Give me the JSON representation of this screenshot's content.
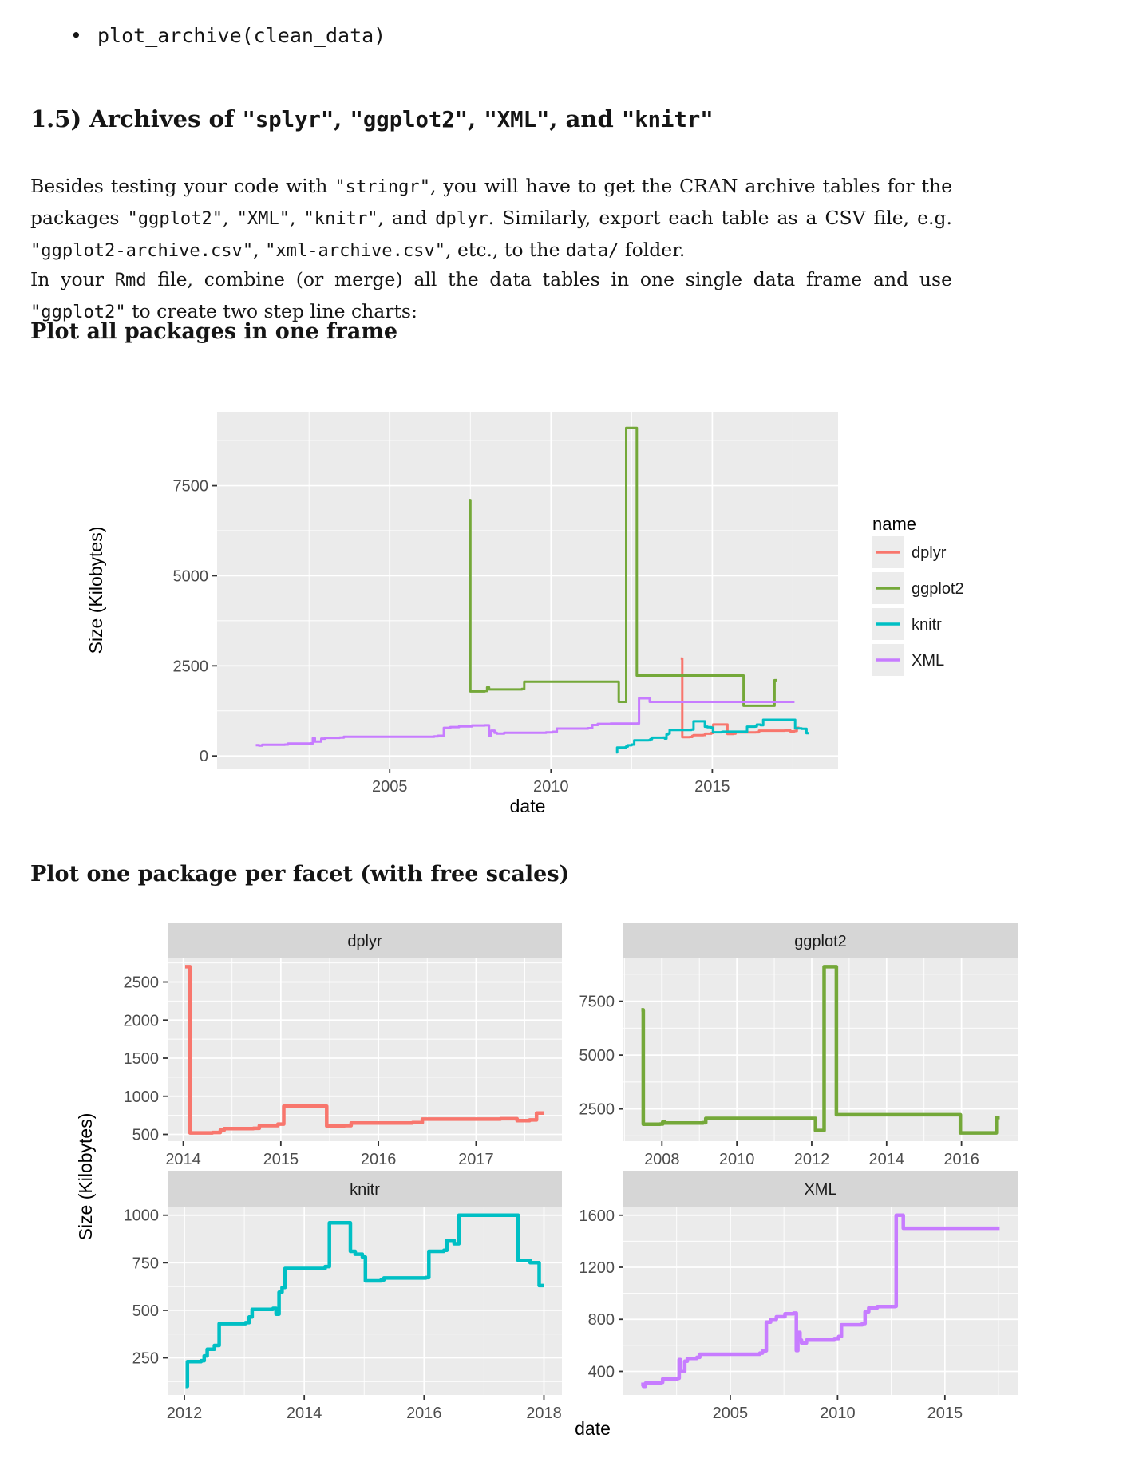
{
  "page": {
    "bullet_code": "plot_archive(clean_data)",
    "heading": {
      "segments": [
        {
          "t": "1.5) Archives of "
        },
        {
          "t": "\"splyr\"",
          "c": 1
        },
        {
          "t": ", "
        },
        {
          "t": "\"ggplot2\"",
          "c": 1
        },
        {
          "t": ", "
        },
        {
          "t": "\"XML\"",
          "c": 1
        },
        {
          "t": ", and "
        },
        {
          "t": "\"knitr\"",
          "c": 1
        }
      ]
    },
    "para1": {
      "segments": [
        {
          "t": "Besides testing your code with "
        },
        {
          "t": "\"stringr\"",
          "c": 1
        },
        {
          "t": ", you will have to get the CRAN archive tables for the packages "
        },
        {
          "t": "\"ggplot2\"",
          "c": 1
        },
        {
          "t": ", "
        },
        {
          "t": "\"XML\"",
          "c": 1
        },
        {
          "t": ", "
        },
        {
          "t": "\"knitr\"",
          "c": 1
        },
        {
          "t": ", and "
        },
        {
          "t": "dplyr",
          "c": 1
        },
        {
          "t": ". Similarly, export each table as a CSV file, e.g. "
        },
        {
          "t": "\"ggplot2-archive.csv\"",
          "c": 1
        },
        {
          "t": ", "
        },
        {
          "t": "\"xml-archive.csv\"",
          "c": 1
        },
        {
          "t": ", etc., to the "
        },
        {
          "t": "data/",
          "c": 1
        },
        {
          "t": " folder."
        }
      ]
    },
    "para2": {
      "segments": [
        {
          "t": "In your "
        },
        {
          "t": "Rmd",
          "c": 1
        },
        {
          "t": " file, combine (or merge) all the data tables in one single data frame and use "
        },
        {
          "t": "\"ggplot2\"",
          "c": 1
        },
        {
          "t": " to create two step line charts:"
        }
      ]
    },
    "subheading1": "Plot all packages in one frame",
    "subheading2": "Plot one package per facet (with free scales)"
  },
  "theme": {
    "panel_bg": "#EBEBEB",
    "strip_bg": "#D6D6D6",
    "grid": "#FFFFFF",
    "tick_mark": "#333333",
    "tick_text": "#4D4D4D",
    "axis_title": "#000000",
    "strip_text": "#1A1A1A",
    "legend_key_bg": "#ECECEC"
  },
  "chart_data": [
    {
      "type": "line",
      "step": true,
      "xlabel": "date",
      "ylabel": "Size (Kilobytes)",
      "xlim": [
        1999.65,
        2018.9
      ],
      "ylim": [
        -350,
        9550
      ],
      "x_ticks": [
        2005,
        2010,
        2015
      ],
      "y_ticks": [
        0,
        2500,
        5000,
        7500
      ],
      "grid": true,
      "legend": {
        "title": "name",
        "position": "right",
        "entries": [
          "dplyr",
          "ggplot2",
          "knitr",
          "XML"
        ]
      },
      "series": [
        {
          "name": "dplyr",
          "color": "#F8766D",
          "points": [
            [
              2014.02,
              2700
            ],
            [
              2014.07,
              520
            ],
            [
              2014.3,
              525
            ],
            [
              2014.38,
              555
            ],
            [
              2014.42,
              575
            ],
            [
              2014.72,
              580
            ],
            [
              2014.78,
              615
            ],
            [
              2014.97,
              635
            ],
            [
              2015.03,
              870
            ],
            [
              2015.44,
              870
            ],
            [
              2015.47,
              610
            ],
            [
              2015.65,
              615
            ],
            [
              2015.72,
              650
            ],
            [
              2016.35,
              655
            ],
            [
              2016.45,
              700
            ],
            [
              2017.25,
              705
            ],
            [
              2017.42,
              680
            ],
            [
              2017.55,
              690
            ],
            [
              2017.62,
              780
            ],
            [
              2017.7,
              780
            ]
          ]
        },
        {
          "name": "ggplot2",
          "color": "#74A839",
          "points": [
            [
              2007.45,
              7100
            ],
            [
              2007.5,
              1790
            ],
            [
              2007.95,
              1800
            ],
            [
              2008.02,
              1900
            ],
            [
              2008.08,
              1845
            ],
            [
              2009.1,
              1860
            ],
            [
              2009.17,
              2060
            ],
            [
              2011.9,
              2060
            ],
            [
              2012.1,
              1500
            ],
            [
              2012.28,
              1500
            ],
            [
              2012.33,
              9100
            ],
            [
              2012.62,
              9100
            ],
            [
              2012.66,
              2230
            ],
            [
              2015.92,
              2230
            ],
            [
              2015.97,
              1390
            ],
            [
              2016.88,
              1390
            ],
            [
              2016.93,
              2100
            ],
            [
              2017.02,
              2100
            ]
          ]
        },
        {
          "name": "knitr",
          "color": "#00BFC4",
          "points": [
            [
              2012.02,
              100
            ],
            [
              2012.05,
              230
            ],
            [
              2012.28,
              235
            ],
            [
              2012.33,
              260
            ],
            [
              2012.38,
              295
            ],
            [
              2012.5,
              315
            ],
            [
              2012.58,
              430
            ],
            [
              2013.02,
              435
            ],
            [
              2013.08,
              465
            ],
            [
              2013.13,
              505
            ],
            [
              2013.48,
              510
            ],
            [
              2013.53,
              480
            ],
            [
              2013.58,
              595
            ],
            [
              2013.63,
              620
            ],
            [
              2013.68,
              720
            ],
            [
              2014.35,
              730
            ],
            [
              2014.42,
              960
            ],
            [
              2014.72,
              960
            ],
            [
              2014.77,
              810
            ],
            [
              2014.85,
              795
            ],
            [
              2014.97,
              780
            ],
            [
              2015.02,
              655
            ],
            [
              2015.28,
              660
            ],
            [
              2015.33,
              670
            ],
            [
              2016.03,
              672
            ],
            [
              2016.08,
              810
            ],
            [
              2016.33,
              815
            ],
            [
              2016.38,
              868
            ],
            [
              2016.5,
              850
            ],
            [
              2016.58,
              1000
            ],
            [
              2017.52,
              1000
            ],
            [
              2017.57,
              762
            ],
            [
              2017.77,
              750
            ],
            [
              2017.92,
              630
            ],
            [
              2018.0,
              630
            ]
          ]
        },
        {
          "name": "XML",
          "color": "#C77CFF",
          "points": [
            [
              2000.85,
              300
            ],
            [
              2000.95,
              285
            ],
            [
              2001.05,
              310
            ],
            [
              2001.75,
              315
            ],
            [
              2001.85,
              342
            ],
            [
              2002.55,
              348
            ],
            [
              2002.62,
              490
            ],
            [
              2002.68,
              398
            ],
            [
              2002.88,
              478
            ],
            [
              2003.0,
              500
            ],
            [
              2003.45,
              508
            ],
            [
              2003.58,
              532
            ],
            [
              2006.38,
              540
            ],
            [
              2006.5,
              558
            ],
            [
              2006.68,
              778
            ],
            [
              2006.88,
              800
            ],
            [
              2007.15,
              820
            ],
            [
              2007.55,
              843
            ],
            [
              2007.95,
              848
            ],
            [
              2008.08,
              560
            ],
            [
              2008.15,
              700
            ],
            [
              2008.25,
              640
            ],
            [
              2008.32,
              618
            ],
            [
              2008.55,
              640
            ],
            [
              2009.85,
              652
            ],
            [
              2010.05,
              668
            ],
            [
              2010.18,
              758
            ],
            [
              2011.15,
              768
            ],
            [
              2011.28,
              858
            ],
            [
              2011.45,
              888
            ],
            [
              2011.85,
              898
            ],
            [
              2012.68,
              900
            ],
            [
              2012.73,
              1600
            ],
            [
              2013.0,
              1600
            ],
            [
              2013.06,
              1500
            ],
            [
              2017.55,
              1500
            ]
          ]
        }
      ]
    },
    {
      "type": "line",
      "step": true,
      "faceted": true,
      "free_scales": true,
      "xlabel": "date",
      "ylabel": "Size (Kilobytes)",
      "facets": [
        {
          "name": "dplyr",
          "series_ref": "dplyr",
          "xlim": [
            2013.84,
            2017.88
          ],
          "ylim": [
            411,
            2809
          ],
          "x_ticks": [
            2014,
            2015,
            2016,
            2017
          ],
          "y_ticks": [
            500,
            1000,
            1500,
            2000,
            2500
          ]
        },
        {
          "name": "ggplot2",
          "series_ref": "ggplot2",
          "xlim": [
            2006.97,
            2017.5
          ],
          "ylim": [
            1005,
            9485
          ],
          "x_ticks": [
            2008,
            2010,
            2012,
            2014,
            2016
          ],
          "y_ticks": [
            2500,
            5000,
            7500
          ]
        },
        {
          "name": "knitr",
          "series_ref": "knitr",
          "xlim": [
            2011.72,
            2018.3
          ],
          "ylim": [
            55,
            1045
          ],
          "x_ticks": [
            2012,
            2014,
            2016,
            2018
          ],
          "y_ticks": [
            250,
            500,
            750,
            1000
          ]
        },
        {
          "name": "XML",
          "series_ref": "XML",
          "xlim": [
            2000.02,
            2018.39
          ],
          "ylim": [
            219,
            1666
          ],
          "x_ticks": [
            2005,
            2010,
            2015
          ],
          "y_ticks": [
            400,
            800,
            1200,
            1600
          ]
        }
      ]
    }
  ]
}
